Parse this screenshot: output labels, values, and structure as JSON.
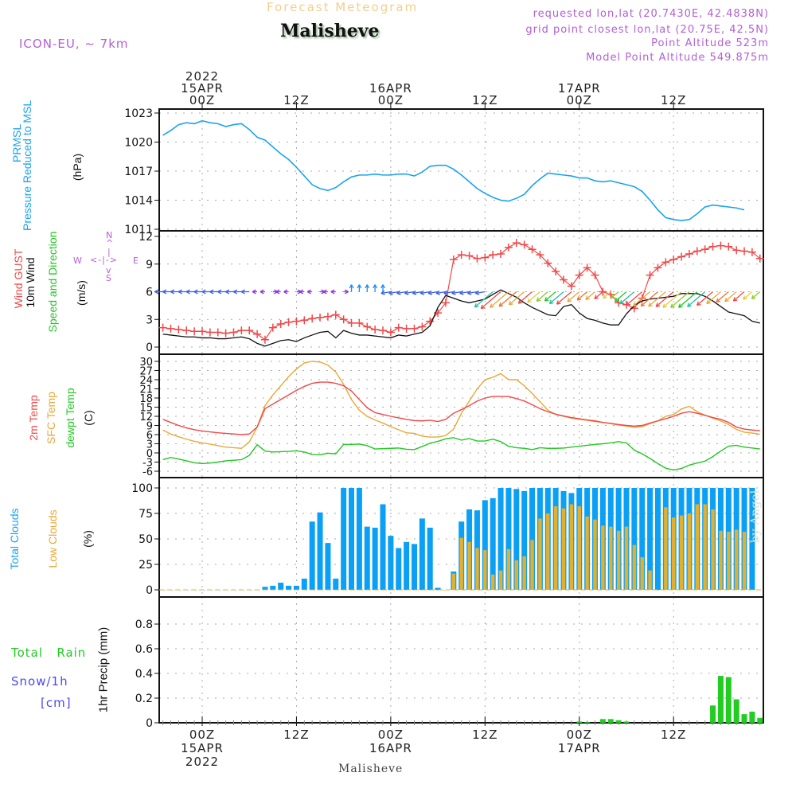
{
  "header": {
    "title": "Forecast Meteogram",
    "location": "Malisheve",
    "model": "ICON-EU, ~ 7km",
    "requested": "requested lon,lat (20.7430E, 42.4838N)",
    "grid_point": "grid point closest lon,lat (20.75E, 42.5N)",
    "point_altitude": "Point Altitude 523m",
    "model_altitude": "Model Point Altitude 549.875m"
  },
  "top_axis": [
    {
      "lines": [
        "2022",
        "15APR",
        "00Z"
      ],
      "hour": 0
    },
    {
      "lines": [
        "12Z"
      ],
      "hour": 12
    },
    {
      "lines": [
        "16APR",
        "00Z"
      ],
      "hour": 24
    },
    {
      "lines": [
        "12Z"
      ],
      "hour": 36
    },
    {
      "lines": [
        "17APR",
        "00Z"
      ],
      "hour": 48
    },
    {
      "lines": [
        "12Z"
      ],
      "hour": 60
    }
  ],
  "bottom_axis": [
    {
      "lines": [
        "00Z",
        "15APR",
        "2022"
      ],
      "hour": 0
    },
    {
      "lines": [
        "12Z"
      ],
      "hour": 12
    },
    {
      "lines": [
        "00Z",
        "16APR"
      ],
      "hour": 24
    },
    {
      "lines": [
        "12Z"
      ],
      "hour": 36
    },
    {
      "lines": [
        "00Z",
        "17APR"
      ],
      "hour": 48
    },
    {
      "lines": [
        "12Z"
      ],
      "hour": 60
    }
  ],
  "footer_location": "Malisheve",
  "watermark": "by Angel",
  "labels": {
    "pressure": {
      "l1": "PRMSL",
      "l2": "Pressure Reduced to MSL",
      "unit": "(hPa)"
    },
    "wind": {
      "l1": "Wind GUST",
      "l2": "10m Wind",
      "l3": "Speed and Direction",
      "unit": "(m/s)"
    },
    "compass": {
      "n": "N",
      "s": "S",
      "w": "W",
      "e": "E"
    },
    "temp": {
      "l1": "2m Temp",
      "l2": "SFC Temp",
      "l3": "dewpt Temp",
      "unit": "(C)"
    },
    "clouds": {
      "l1": "Total Clouds",
      "l2": "Low Clouds",
      "unit": "(%)"
    },
    "precip": {
      "l1": "Total",
      "l1b": "Rain",
      "l2": "Snow/1h",
      "l3": "[cm]",
      "unit": "1hr Precip (mm)"
    }
  },
  "colors": {
    "pressure": "#1aa3f0",
    "gust": "#f04848",
    "wind10m": "#111111",
    "temp2m": "#f04848",
    "sfc": "#e8a838",
    "dewpt": "#22c822",
    "total_clouds": "#0aa0f5",
    "low_clouds": "#e3b02e",
    "rain": "#22cc22",
    "snow": "#4a4af0",
    "header_purple": "#b35fd6"
  },
  "chart_data": [
    {
      "type": "line",
      "title": "PRMSL Pressure Reduced to MSL",
      "ylabel": "(hPa)",
      "ylim": [
        1011,
        1023
      ],
      "yticks": [
        1011,
        1014,
        1017,
        1020,
        1023
      ],
      "x_start_hour": -5,
      "x_step_hours": 1,
      "series": [
        {
          "name": "PRMSL",
          "values": [
            1020.7,
            1021.2,
            1021.8,
            1022.0,
            1021.9,
            1022.2,
            1022.0,
            1021.9,
            1021.6,
            1021.8,
            1021.9,
            1021.3,
            1020.5,
            1020.2,
            1019.5,
            1018.8,
            1018.2,
            1017.4,
            1016.5,
            1015.6,
            1015.2,
            1015.0,
            1015.3,
            1015.9,
            1016.4,
            1016.6,
            1016.6,
            1016.7,
            1016.6,
            1016.6,
            1016.7,
            1016.7,
            1016.5,
            1016.9,
            1017.5,
            1017.6,
            1017.6,
            1017.2,
            1016.6,
            1015.9,
            1015.2,
            1014.7,
            1014.3,
            1014.0,
            1013.9,
            1014.2,
            1014.6,
            1015.5,
            1016.2,
            1016.8,
            1016.7,
            1016.6,
            1016.5,
            1016.3,
            1016.3,
            1016.0,
            1015.9,
            1016.0,
            1015.8,
            1015.6,
            1015.4,
            1014.9,
            1014.0,
            1013.0,
            1012.2,
            1012.0,
            1011.9,
            1012.0,
            1012.6,
            1013.3,
            1013.5,
            1013.4,
            1013.3,
            1013.2,
            1013.0
          ]
        }
      ]
    },
    {
      "type": "line",
      "title": "Wind GUST / 10m Wind Speed and Direction",
      "ylabel": "(m/s)",
      "ylim": [
        -0.8,
        12.3
      ],
      "yticks": [
        0,
        3,
        6,
        9,
        12
      ],
      "x_start_hour": -5,
      "x_step_hours": 1,
      "series": [
        {
          "name": "Wind GUST",
          "marker": "+",
          "values": [
            2.1,
            2.0,
            1.9,
            1.8,
            1.7,
            1.7,
            1.6,
            1.6,
            1.5,
            1.6,
            1.8,
            1.8,
            1.4,
            0.8,
            2.1,
            2.5,
            2.7,
            2.8,
            2.9,
            3.1,
            3.2,
            3.3,
            3.5,
            3.0,
            2.6,
            2.6,
            2.2,
            1.9,
            1.8,
            1.6,
            2.1,
            2.0,
            2.0,
            2.2,
            2.8,
            3.7,
            4.8,
            9.5,
            10.0,
            9.9,
            9.6,
            9.7,
            10.0,
            10.1,
            10.8,
            11.3,
            11.1,
            10.6,
            10.0,
            9.1,
            8.2,
            7.3,
            6.6,
            7.8,
            8.6,
            7.8,
            6.0,
            5.7,
            4.8,
            4.6,
            4.2,
            5.3,
            7.8,
            8.6,
            9.2,
            9.5,
            9.8,
            10.1,
            10.4,
            10.6,
            10.9,
            11.0,
            10.9,
            10.5,
            10.4,
            10.3,
            9.6,
            8.5,
            7.3,
            6.0,
            5.2,
            5.0,
            5.4,
            5.5
          ]
        },
        {
          "name": "10m Wind",
          "values": [
            1.4,
            1.3,
            1.2,
            1.1,
            1.1,
            1.0,
            1.0,
            0.9,
            0.9,
            1.0,
            1.1,
            0.9,
            0.4,
            0.1,
            0.4,
            0.7,
            0.8,
            0.6,
            1.0,
            1.3,
            1.6,
            1.7,
            1.0,
            1.8,
            1.5,
            1.3,
            1.3,
            1.2,
            1.1,
            1.0,
            1.3,
            1.2,
            1.4,
            1.6,
            2.3,
            4.3,
            5.6,
            5.3,
            5.0,
            4.8,
            5.0,
            5.2,
            5.7,
            6.2,
            5.8,
            5.4,
            4.8,
            4.3,
            3.9,
            3.5,
            3.4,
            4.4,
            4.6,
            3.7,
            3.1,
            2.9,
            2.6,
            2.4,
            2.4,
            3.6,
            4.5,
            5.0,
            5.2,
            5.3,
            5.4,
            5.5,
            5.8,
            5.8,
            5.8,
            5.5,
            5.0,
            4.4,
            3.8,
            3.6,
            3.4,
            2.8,
            2.6,
            2.7,
            2.9,
            3.0
          ]
        }
      ],
      "wind_direction_arrows": "direction-colored wind barbs along ~6 m/s line; easterly (blue/purple) early, then northeasterly (orange/red/green) from 16APR 06Z"
    },
    {
      "type": "line",
      "title": "2m Temp / SFC Temp / dewpt Temp",
      "ylabel": "(C)",
      "ylim": [
        -7,
        31
      ],
      "yticks": [
        -6,
        -3,
        0,
        3,
        6,
        9,
        12,
        15,
        18,
        21,
        24,
        27,
        30
      ],
      "x_start_hour": -5,
      "x_step_hours": 1,
      "series": [
        {
          "name": "2m Temp",
          "values": [
            11.0,
            10.0,
            9.0,
            8.2,
            7.6,
            7.2,
            6.9,
            6.6,
            6.4,
            6.2,
            6.0,
            6.2,
            8.5,
            14.5,
            16.0,
            17.5,
            19.0,
            20.5,
            21.8,
            22.8,
            23.2,
            23.2,
            22.8,
            22.0,
            20.3,
            17.5,
            14.8,
            13.2,
            12.6,
            12.0,
            11.5,
            11.0,
            10.6,
            10.5,
            10.7,
            10.3,
            11.0,
            13.0,
            14.2,
            15.5,
            17.0,
            18.0,
            18.5,
            18.5,
            18.5,
            17.8,
            17.0,
            15.8,
            14.5,
            13.5,
            12.7,
            12.1,
            11.6,
            11.2,
            10.8,
            10.5,
            10.0,
            9.7,
            9.3,
            9.0,
            8.8,
            9.0,
            9.8,
            10.5,
            11.2,
            12.0,
            13.0,
            13.5,
            13.0,
            12.3,
            11.6,
            11.0,
            10.0,
            8.5,
            7.8,
            7.5,
            7.3,
            7.0,
            6.8
          ]
        },
        {
          "name": "SFC Temp",
          "values": [
            7.5,
            6.2,
            5.3,
            4.5,
            3.8,
            3.3,
            2.9,
            2.4,
            1.9,
            1.7,
            1.5,
            3.6,
            8.5,
            15.5,
            19.0,
            22.0,
            25.0,
            27.5,
            29.5,
            30.0,
            29.8,
            28.8,
            26.5,
            22.5,
            17.5,
            14.0,
            12.0,
            10.8,
            9.8,
            8.6,
            7.6,
            6.6,
            6.4,
            5.5,
            5.2,
            5.2,
            5.7,
            7.8,
            13.0,
            17.0,
            21.0,
            24.0,
            24.8,
            26.0,
            24.0,
            24.0,
            22.0,
            19.5,
            16.8,
            14.0,
            12.6,
            12.0,
            11.4,
            11.0,
            10.7,
            10.3,
            10.0,
            9.6,
            9.1,
            8.8,
            8.4,
            8.6,
            9.6,
            10.5,
            12.0,
            12.6,
            14.4,
            15.3,
            13.5,
            12.4,
            11.4,
            10.5,
            9.3,
            7.7,
            6.8,
            6.5,
            6.1,
            6.0,
            5.8
          ]
        },
        {
          "name": "dewpt Temp",
          "values": [
            -2.2,
            -1.5,
            -2.0,
            -2.6,
            -3.2,
            -3.5,
            -3.3,
            -3.0,
            -2.6,
            -2.4,
            -2.2,
            -0.8,
            2.7,
            0.6,
            0.3,
            0.4,
            0.5,
            0.7,
            0.3,
            -0.5,
            -0.6,
            -0.1,
            -0.3,
            2.8,
            2.8,
            2.9,
            2.4,
            1.3,
            1.4,
            1.5,
            1.6,
            1.2,
            1.1,
            2.1,
            3.2,
            3.8,
            4.6,
            5.0,
            4.2,
            4.7,
            3.9,
            3.9,
            4.5,
            3.7,
            2.2,
            1.7,
            1.5,
            1.1,
            1.7,
            1.5,
            1.5,
            1.6,
            1.9,
            2.2,
            2.5,
            2.8,
            3.0,
            3.3,
            3.7,
            3.3,
            0.9,
            -0.3,
            -1.8,
            -3.5,
            -5.0,
            -5.6,
            -5.1,
            -4.0,
            -3.3,
            -2.7,
            -1.2,
            0.6,
            2.2,
            2.5,
            1.9,
            1.6,
            1.3
          ]
        }
      ]
    },
    {
      "type": "bar",
      "title": "Total Clouds / Low Clouds",
      "ylabel": "(%)",
      "ylim": [
        -5,
        103
      ],
      "yticks": [
        0,
        25,
        50,
        75,
        100
      ],
      "x_start_hour": -5,
      "x_step_hours": 1,
      "series": [
        {
          "name": "Total Clouds",
          "values": [
            0,
            0,
            0,
            0,
            0,
            0,
            0,
            0,
            0,
            0,
            0,
            0,
            0,
            3,
            4,
            7,
            4,
            4,
            11,
            67,
            76,
            46,
            11,
            100,
            100,
            100,
            62,
            61,
            84,
            53,
            41,
            47,
            45,
            70,
            61,
            2,
            0,
            18,
            67,
            79,
            78,
            88,
            90,
            100,
            100,
            99,
            97,
            100,
            100,
            100,
            100,
            97,
            95,
            100,
            100,
            100,
            100,
            100,
            100,
            100,
            100,
            100,
            100,
            100,
            100,
            100,
            100,
            100,
            100,
            100,
            100,
            100,
            100,
            100,
            100,
            100
          ]
        },
        {
          "name": "Low Clouds",
          "values": [
            0,
            0,
            0,
            0,
            0,
            0,
            0,
            0,
            0,
            0,
            0,
            0,
            0,
            0,
            0,
            0,
            0,
            0,
            0,
            0,
            0,
            0,
            0,
            0,
            0,
            0,
            0,
            0,
            0,
            0,
            0,
            0,
            0,
            0,
            0,
            0,
            0,
            16,
            51,
            47,
            41,
            39,
            15,
            19,
            40,
            29,
            33,
            49,
            70,
            75,
            82,
            80,
            84,
            82,
            72,
            69,
            63,
            62,
            58,
            62,
            44,
            32,
            19,
            0,
            81,
            71,
            73,
            75,
            84,
            84,
            79,
            58,
            57,
            59,
            57
          ]
        }
      ]
    },
    {
      "type": "bar",
      "title": "1hr Precip",
      "ylabel": "1hr Precip (mm)",
      "ylim": [
        0,
        0.98
      ],
      "yticks": [
        0,
        0.2,
        0.4,
        0.6,
        0.8
      ],
      "x_start_hour": -5,
      "x_step_hours": 1,
      "series": [
        {
          "name": "Total Rain",
          "values": [
            0,
            0,
            0,
            0,
            0,
            0,
            0,
            0,
            0,
            0,
            0,
            0,
            0,
            0,
            0,
            0,
            0,
            0,
            0,
            0,
            0,
            0,
            0,
            0,
            0,
            0,
            0,
            0,
            0,
            0,
            0,
            0,
            0,
            0,
            0,
            0,
            0,
            0,
            0,
            0,
            0,
            0,
            0,
            0,
            0,
            0,
            0,
            0,
            0,
            0,
            0,
            0,
            0,
            0.01,
            0.005,
            0,
            0.03,
            0.03,
            0.02,
            0.01,
            0,
            0,
            0,
            0,
            0,
            0,
            0,
            0,
            0,
            0,
            0.14,
            0.38,
            0.37,
            0.19,
            0.07,
            0.09,
            0.04
          ]
        },
        {
          "name": "Snow/1h",
          "values": []
        }
      ]
    }
  ]
}
